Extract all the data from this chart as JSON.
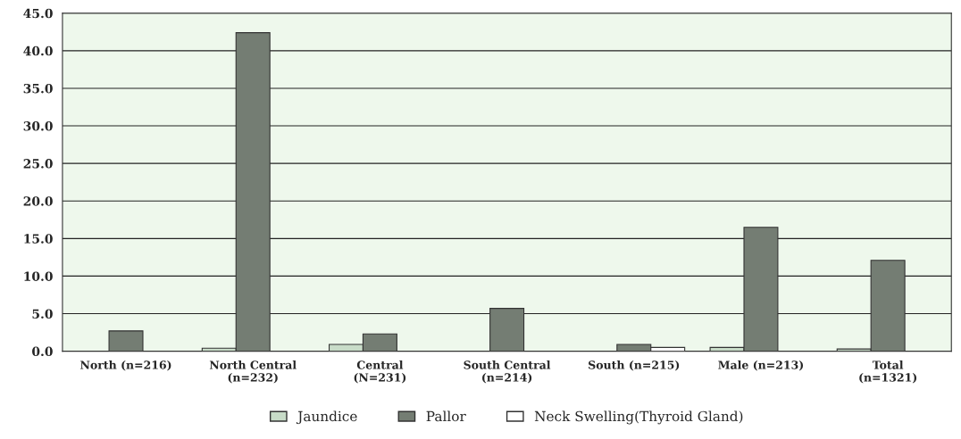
{
  "chart_data": {
    "type": "bar",
    "categories": [
      "North (n=216)",
      "North Central\n(n=232)",
      "Central\n(N=231)",
      "South Central\n(n=214)",
      "South (n=215)",
      "Male (n=213)",
      "Total\n(n=1321)"
    ],
    "series": [
      {
        "name": "Jaundice",
        "color": "#c8dcc8",
        "values": [
          0.0,
          0.4,
          0.9,
          0.0,
          0.0,
          0.5,
          0.3
        ]
      },
      {
        "name": "Pallor",
        "color": "#747d73",
        "values": [
          2.7,
          42.4,
          2.3,
          5.7,
          0.9,
          16.5,
          12.1
        ]
      },
      {
        "name": "Neck Swelling(Thyroid Gland)",
        "color": "#ffffff",
        "values": [
          0.0,
          0.0,
          0.0,
          0.0,
          0.5,
          0.0,
          0.0
        ]
      }
    ],
    "ylim": [
      0,
      45
    ],
    "yticks": [
      {
        "value": 0,
        "label": "0.0"
      },
      {
        "value": 5,
        "label": "5.0"
      },
      {
        "value": 10,
        "label": "10.0"
      },
      {
        "value": 15,
        "label": "15.0"
      },
      {
        "value": 20,
        "label": "20.0"
      },
      {
        "value": 25,
        "label": "25.0"
      },
      {
        "value": 30,
        "label": "30.0"
      },
      {
        "value": 35,
        "label": "35.0"
      },
      {
        "value": 40,
        "label": "40.0"
      },
      {
        "value": 45,
        "label": "45.0"
      }
    ],
    "grid": "y",
    "legend": "bottom"
  }
}
